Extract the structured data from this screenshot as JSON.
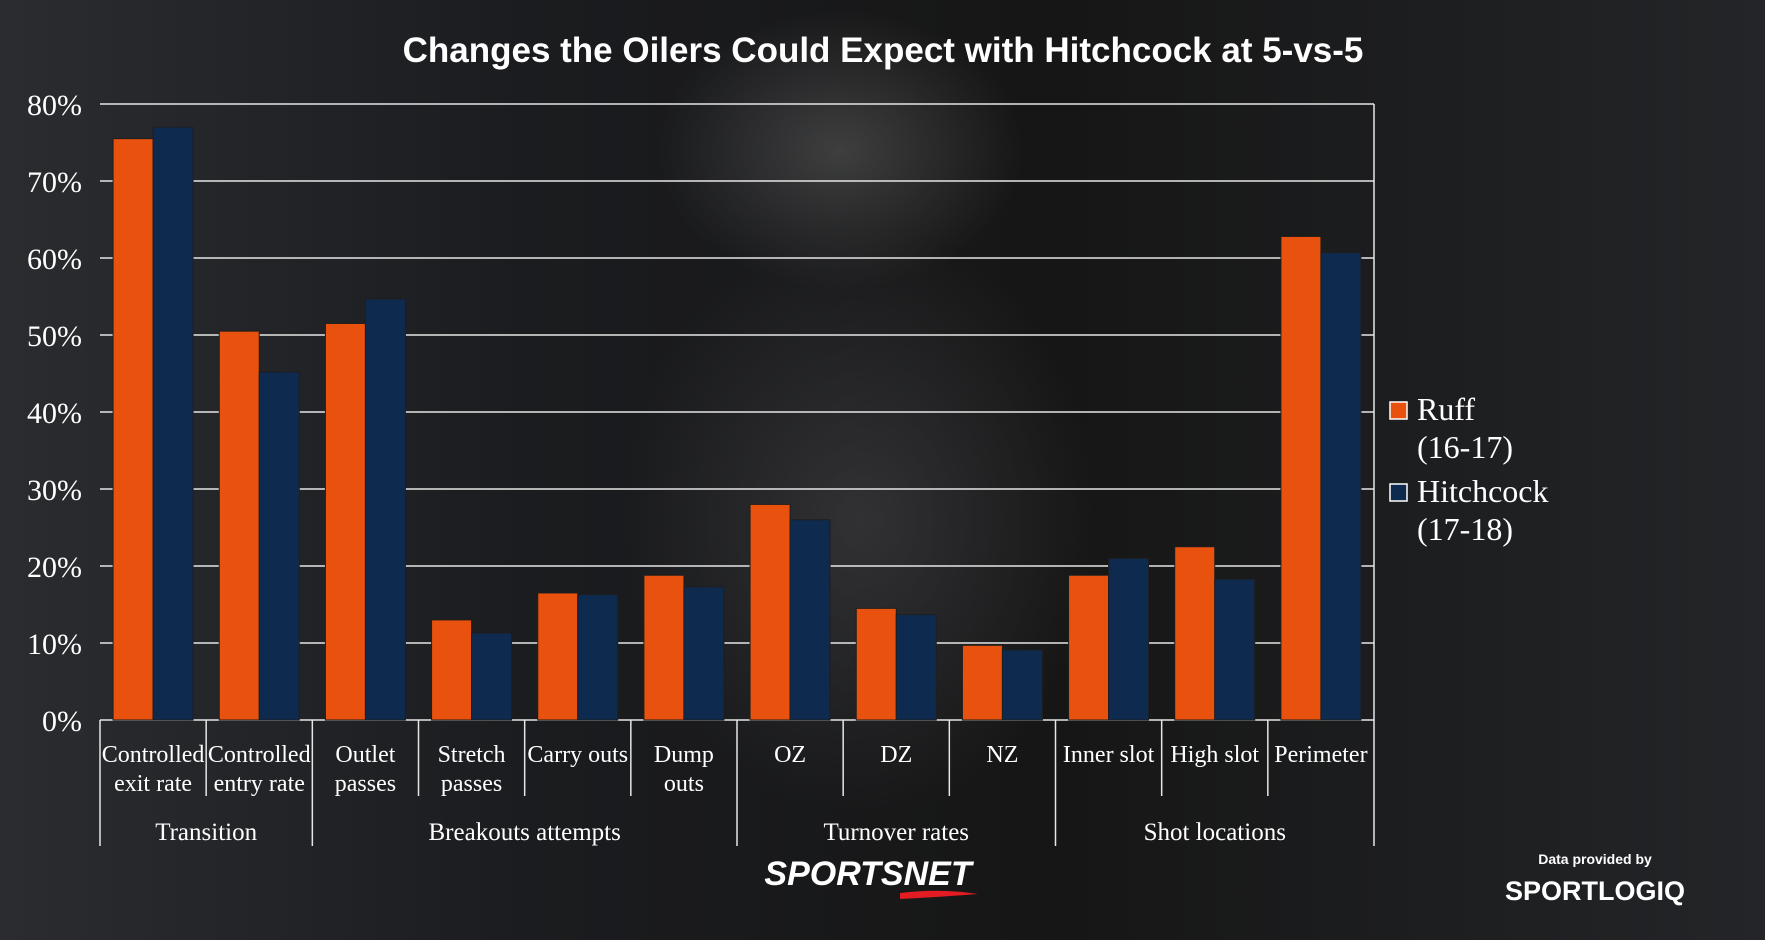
{
  "chart_data": {
    "type": "bar",
    "title": "Changes the Oilers Could Expect with Hitchcock at 5-vs-5",
    "ylim": [
      0,
      80
    ],
    "yticks": [
      "0%",
      "10%",
      "20%",
      "30%",
      "40%",
      "50%",
      "60%",
      "70%",
      "80%"
    ],
    "categories": [
      [
        "Controlled",
        "exit rate"
      ],
      [
        "Controlled",
        "entry rate"
      ],
      [
        "Outlet",
        "passes"
      ],
      [
        "Stretch",
        "passes"
      ],
      [
        "Carry outs"
      ],
      [
        "Dump",
        "outs"
      ],
      [
        "OZ"
      ],
      [
        "DZ"
      ],
      [
        "NZ"
      ],
      [
        "Inner slot"
      ],
      [
        "High slot"
      ],
      [
        "Perimeter"
      ]
    ],
    "groups": [
      {
        "label": "Transition",
        "start": 0,
        "end": 1
      },
      {
        "label": "Breakouts attempts",
        "start": 2,
        "end": 5
      },
      {
        "label": "Turnover rates",
        "start": 6,
        "end": 8
      },
      {
        "label": "Shot locations",
        "start": 9,
        "end": 11
      }
    ],
    "series": [
      {
        "name": "Ruff",
        "sub": "(16-17)",
        "color": "#E8520E",
        "values": [
          75.5,
          50.5,
          51.5,
          13,
          16.5,
          18.8,
          28,
          14.5,
          9.7,
          18.8,
          22.5,
          62.8
        ]
      },
      {
        "name": "Hitchcock",
        "sub": "(17-18)",
        "color": "#0E2A4F",
        "values": [
          77,
          45.2,
          54.7,
          11.3,
          16.3,
          17.3,
          26,
          13.7,
          9.1,
          21,
          18.3,
          60.7
        ]
      }
    ],
    "grid": true,
    "legend": "right"
  },
  "branding": {
    "logo": "SPORTSNET",
    "credit_line": "Data provided by",
    "credit_logo": "SPORTLOGIQ"
  }
}
